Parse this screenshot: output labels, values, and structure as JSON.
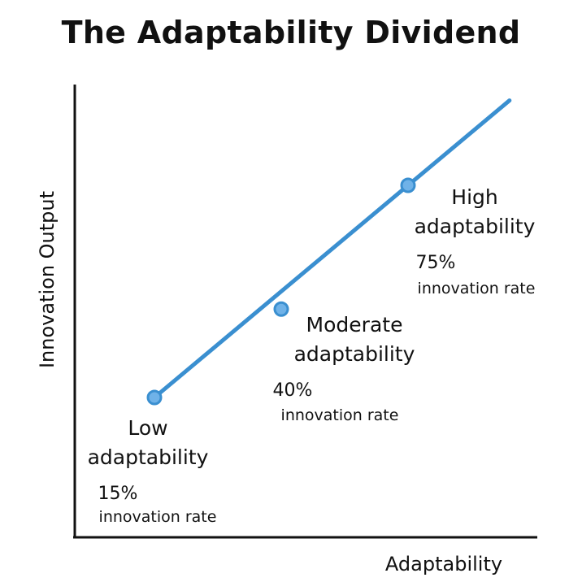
{
  "chart_data": {
    "type": "line",
    "title": "The Adaptability Dividend",
    "xlabel": "Adaptability",
    "ylabel": "Innovation Output",
    "grid": false,
    "xlim": [
      0,
      4
    ],
    "ylim": [
      0,
      100
    ],
    "series": [
      {
        "name": "Innovation rate",
        "color": "#3a8fd0",
        "point_fill": "#6fb2e8",
        "points": [
          {
            "x": 1,
            "y": 15,
            "label_lines": [
              "Low",
              "adaptability"
            ],
            "pct": "15%",
            "sub": "innovation rate"
          },
          {
            "x": 2,
            "y": 40,
            "label_lines": [
              "Moderate",
              "adaptability"
            ],
            "pct": "40%",
            "sub": "innovation rate"
          },
          {
            "x": 3,
            "y": 75,
            "label_lines": [
              "High",
              "adaptability"
            ],
            "pct": "75%",
            "sub": "innovation rate"
          }
        ]
      }
    ]
  }
}
